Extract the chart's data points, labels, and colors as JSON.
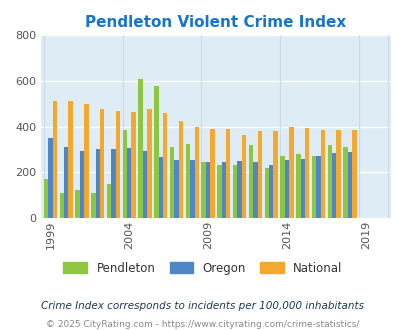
{
  "title": "Pendleton Violent Crime Index",
  "title_color": "#1874CD",
  "plot_bg": "#deedf5",
  "fig_bg": "#ffffff",
  "ylim": [
    0,
    800
  ],
  "yticks": [
    0,
    200,
    400,
    600,
    800
  ],
  "years": [
    1999,
    2000,
    2001,
    2002,
    2003,
    2004,
    2005,
    2006,
    2007,
    2008,
    2009,
    2010,
    2011,
    2012,
    2013,
    2014,
    2015,
    2016,
    2017,
    2018,
    2019,
    2020
  ],
  "pendleton": [
    170,
    110,
    120,
    110,
    150,
    385,
    610,
    580,
    310,
    325,
    245,
    230,
    230,
    320,
    220,
    270,
    280,
    270,
    320,
    310,
    0,
    0
  ],
  "oregon": [
    350,
    310,
    295,
    300,
    300,
    305,
    295,
    265,
    255,
    255,
    245,
    245,
    250,
    245,
    230,
    255,
    260,
    270,
    285,
    290,
    0,
    0
  ],
  "national": [
    510,
    510,
    500,
    475,
    470,
    465,
    475,
    460,
    425,
    400,
    390,
    390,
    365,
    380,
    380,
    400,
    395,
    385,
    385,
    385,
    0,
    0
  ],
  "pendleton_color": "#8dc641",
  "oregon_color": "#4f86c6",
  "national_color": "#f5a830",
  "bar_width": 0.28,
  "xtick_years": [
    1999,
    2004,
    2009,
    2014,
    2019
  ],
  "legend_labels": [
    "Pendleton",
    "Oregon",
    "National"
  ],
  "caption1": "Crime Index corresponds to incidents per 100,000 inhabitants",
  "caption2": "© 2025 CityRating.com - https://www.cityrating.com/crime-statistics/",
  "caption1_color": "#1a3a5c",
  "caption2_color": "#888888",
  "grid_color": "#ffffff",
  "vgrid_color": "#c8dde8",
  "tick_color": "#555555"
}
